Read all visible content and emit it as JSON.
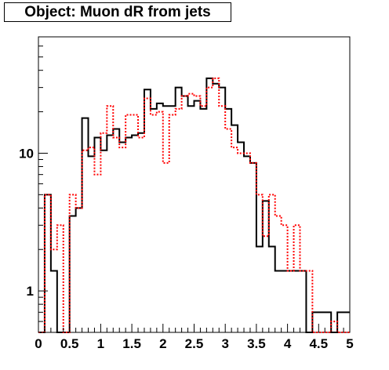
{
  "chart_data": {
    "type": "histogram",
    "title": "Object: Muon dR from jets",
    "xlabel": "",
    "ylabel": "",
    "xlim": [
      0,
      5
    ],
    "ylim": [
      0.5,
      70
    ],
    "y_scale": "log",
    "grid": false,
    "x_ticks": [
      0,
      0.5,
      1,
      1.5,
      2,
      2.5,
      3,
      3.5,
      4,
      4.5,
      5
    ],
    "x_tick_labels": [
      "0",
      "0.5",
      "1",
      "1.5",
      "2",
      "2.5",
      "3",
      "3.5",
      "4",
      "4.5",
      "5"
    ],
    "y_ticks": [
      1,
      10
    ],
    "y_tick_labels": [
      "1",
      "10"
    ],
    "bin_edges": [
      0,
      0.1,
      0.2,
      0.3,
      0.4,
      0.5,
      0.6,
      0.7,
      0.8,
      0.9,
      1.0,
      1.1,
      1.2,
      1.3,
      1.4,
      1.5,
      1.6,
      1.7,
      1.8,
      1.9,
      2.0,
      2.1,
      2.2,
      2.3,
      2.4,
      2.5,
      2.6,
      2.7,
      2.8,
      2.9,
      3.0,
      3.1,
      3.2,
      3.3,
      3.4,
      3.5,
      3.6,
      3.7,
      3.8,
      3.9,
      4.0,
      4.1,
      4.2,
      4.3,
      4.4,
      4.5,
      4.6,
      4.7,
      4.8,
      4.9,
      5.0
    ],
    "series": [
      {
        "color": "#000000",
        "style": "solid",
        "values": [
          0,
          5,
          1.4,
          0,
          0,
          3.5,
          4,
          18,
          9.5,
          13,
          10.5,
          13.5,
          15,
          12,
          13,
          13.5,
          14,
          29,
          21,
          23,
          22,
          22,
          30,
          26,
          22,
          24,
          21,
          35,
          32,
          30,
          21,
          16,
          12,
          9.5,
          8.5,
          2.1,
          4.5,
          2.1,
          1.4,
          1.4,
          1.4,
          1.4,
          1.4,
          0,
          0.7,
          0.7,
          0.7,
          0,
          0.7,
          0.7
        ]
      },
      {
        "color": "#ff0000",
        "style": "dotted",
        "values": [
          0,
          5,
          2,
          3,
          0,
          5,
          4,
          10.5,
          11,
          7,
          14,
          22,
          13,
          11,
          19,
          19,
          13,
          25,
          19,
          20,
          8.5,
          19,
          21,
          26,
          27,
          26,
          22,
          30,
          35,
          22,
          15,
          11,
          10,
          10,
          8.5,
          5,
          2.5,
          5,
          3.5,
          3,
          1.4,
          3,
          1.4,
          1.4,
          0,
          0,
          0.4,
          0.6,
          0,
          0
        ]
      }
    ]
  }
}
